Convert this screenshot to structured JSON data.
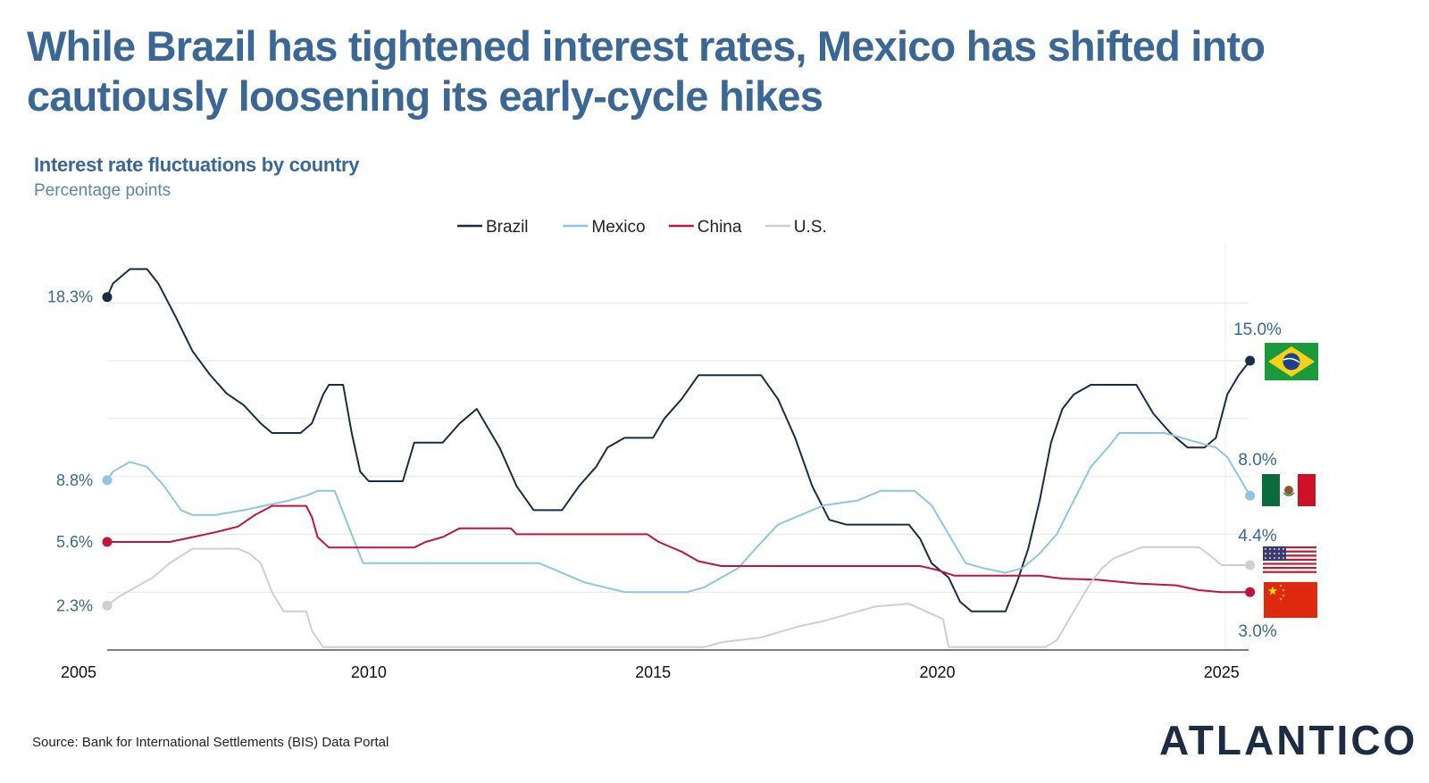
{
  "headline": "While Brazil has tightened interest rates, Mexico has shifted into cautiously loosening its early-cycle hikes",
  "source": "Source: Bank for International Settlements (BIS) Data Portal",
  "logo": "ATLANTICO",
  "colors": {
    "brazil": "#1b2c47",
    "mexico": "#8fc5df",
    "china": "#c0143c",
    "us": "#cfcfcf",
    "text_blue": "#3a6793"
  },
  "flags": [
    "brazil-flag",
    "mexico-flag",
    "us-flag",
    "china-flag"
  ],
  "chart_data": {
    "type": "line",
    "title": "Interest rate fluctuations by country",
    "ylabel": "Percentage points",
    "x_ticks": [
      2005,
      2010,
      2015,
      2020,
      2025
    ],
    "xlim": [
      2005.4,
      2025.6
    ],
    "ylim": [
      0,
      20
    ],
    "grid": true,
    "legend_position": "top-center",
    "start_labels": [
      {
        "series": "Brazil",
        "text": "18.3%",
        "value": 18.3
      },
      {
        "series": "Mexico",
        "text": "8.8%",
        "value": 8.8
      },
      {
        "series": "China",
        "text": "5.6%",
        "value": 5.6
      },
      {
        "series": "U.S.",
        "text": "2.3%",
        "value": 2.3
      }
    ],
    "end_labels": [
      {
        "series": "Brazil",
        "text": "15.0%",
        "value": 15.0
      },
      {
        "series": "Mexico",
        "text": "8.0%",
        "value": 8.0
      },
      {
        "series": "U.S.",
        "text": "4.4%",
        "value": 4.4
      },
      {
        "series": "China",
        "text": "3.0%",
        "value": 3.0
      }
    ],
    "series": [
      {
        "name": "Brazil",
        "color": "#1b2c47",
        "points": [
          [
            2005.4,
            18.3
          ],
          [
            2005.5,
            19.0
          ],
          [
            2005.8,
            19.75
          ],
          [
            2006.1,
            19.75
          ],
          [
            2006.3,
            19.0
          ],
          [
            2006.6,
            17.3
          ],
          [
            2006.9,
            15.5
          ],
          [
            2007.2,
            14.3
          ],
          [
            2007.5,
            13.3
          ],
          [
            2007.8,
            12.7
          ],
          [
            2008.1,
            11.75
          ],
          [
            2008.3,
            11.25
          ],
          [
            2008.5,
            11.25
          ],
          [
            2008.8,
            11.25
          ],
          [
            2009.0,
            11.75
          ],
          [
            2009.2,
            13.25
          ],
          [
            2009.3,
            13.75
          ],
          [
            2009.55,
            13.75
          ],
          [
            2009.7,
            11.25
          ],
          [
            2009.85,
            9.25
          ],
          [
            2010.0,
            8.75
          ],
          [
            2010.3,
            8.75
          ],
          [
            2010.6,
            8.75
          ],
          [
            2010.8,
            10.75
          ],
          [
            2011.0,
            10.75
          ],
          [
            2011.3,
            10.75
          ],
          [
            2011.6,
            11.75
          ],
          [
            2011.9,
            12.5
          ],
          [
            2012.1,
            11.5
          ],
          [
            2012.3,
            10.5
          ],
          [
            2012.6,
            8.5
          ],
          [
            2012.9,
            7.25
          ],
          [
            2013.1,
            7.25
          ],
          [
            2013.4,
            7.25
          ],
          [
            2013.7,
            8.5
          ],
          [
            2014.0,
            9.5
          ],
          [
            2014.2,
            10.5
          ],
          [
            2014.5,
            11.0
          ],
          [
            2014.8,
            11.0
          ],
          [
            2015.0,
            11.0
          ],
          [
            2015.2,
            12.0
          ],
          [
            2015.5,
            13.0
          ],
          [
            2015.8,
            14.25
          ],
          [
            2016.0,
            14.25
          ],
          [
            2016.5,
            14.25
          ],
          [
            2016.9,
            14.25
          ],
          [
            2017.2,
            13.0
          ],
          [
            2017.5,
            11.0
          ],
          [
            2017.8,
            8.5
          ],
          [
            2018.1,
            6.75
          ],
          [
            2018.4,
            6.5
          ],
          [
            2018.8,
            6.5
          ],
          [
            2019.2,
            6.5
          ],
          [
            2019.5,
            6.5
          ],
          [
            2019.7,
            5.75
          ],
          [
            2019.9,
            4.5
          ],
          [
            2020.2,
            3.75
          ],
          [
            2020.4,
            2.5
          ],
          [
            2020.6,
            2.0
          ],
          [
            2020.9,
            2.0
          ],
          [
            2021.2,
            2.0
          ],
          [
            2021.4,
            3.5
          ],
          [
            2021.6,
            5.25
          ],
          [
            2021.8,
            7.75
          ],
          [
            2022.0,
            10.75
          ],
          [
            2022.2,
            12.5
          ],
          [
            2022.4,
            13.25
          ],
          [
            2022.7,
            13.75
          ],
          [
            2023.1,
            13.75
          ],
          [
            2023.5,
            13.75
          ],
          [
            2023.8,
            12.25
          ],
          [
            2024.1,
            11.25
          ],
          [
            2024.4,
            10.5
          ],
          [
            2024.7,
            10.5
          ],
          [
            2024.9,
            11.0
          ],
          [
            2025.1,
            13.25
          ],
          [
            2025.3,
            14.25
          ],
          [
            2025.5,
            15.0
          ]
        ]
      },
      {
        "name": "Mexico",
        "color": "#8fc5df",
        "points": [
          [
            2005.4,
            8.8
          ],
          [
            2005.5,
            9.25
          ],
          [
            2005.8,
            9.75
          ],
          [
            2006.1,
            9.5
          ],
          [
            2006.4,
            8.5
          ],
          [
            2006.7,
            7.25
          ],
          [
            2006.9,
            7.0
          ],
          [
            2007.3,
            7.0
          ],
          [
            2007.8,
            7.25
          ],
          [
            2008.2,
            7.5
          ],
          [
            2008.6,
            7.75
          ],
          [
            2008.9,
            8.0
          ],
          [
            2009.1,
            8.25
          ],
          [
            2009.4,
            8.25
          ],
          [
            2009.6,
            6.75
          ],
          [
            2009.9,
            4.5
          ],
          [
            2010.0,
            4.5
          ],
          [
            2011.0,
            4.5
          ],
          [
            2012.0,
            4.5
          ],
          [
            2013.0,
            4.5
          ],
          [
            2013.4,
            4.0
          ],
          [
            2013.8,
            3.5
          ],
          [
            2014.5,
            3.0
          ],
          [
            2015.0,
            3.0
          ],
          [
            2015.6,
            3.0
          ],
          [
            2015.9,
            3.25
          ],
          [
            2016.2,
            3.75
          ],
          [
            2016.5,
            4.25
          ],
          [
            2016.8,
            5.25
          ],
          [
            2017.2,
            6.5
          ],
          [
            2017.6,
            7.0
          ],
          [
            2018.0,
            7.5
          ],
          [
            2018.6,
            7.75
          ],
          [
            2019.0,
            8.25
          ],
          [
            2019.6,
            8.25
          ],
          [
            2019.9,
            7.5
          ],
          [
            2020.2,
            6.0
          ],
          [
            2020.5,
            4.5
          ],
          [
            2020.8,
            4.25
          ],
          [
            2021.2,
            4.0
          ],
          [
            2021.5,
            4.25
          ],
          [
            2021.8,
            5.0
          ],
          [
            2022.1,
            6.0
          ],
          [
            2022.4,
            7.75
          ],
          [
            2022.7,
            9.5
          ],
          [
            2023.0,
            10.5
          ],
          [
            2023.2,
            11.25
          ],
          [
            2023.6,
            11.25
          ],
          [
            2024.0,
            11.25
          ],
          [
            2024.3,
            11.0
          ],
          [
            2024.6,
            10.75
          ],
          [
            2024.9,
            10.5
          ],
          [
            2025.1,
            10.0
          ],
          [
            2025.3,
            9.0
          ],
          [
            2025.5,
            8.0
          ]
        ]
      },
      {
        "name": "China",
        "color": "#c0143c",
        "points": [
          [
            2005.4,
            5.6
          ],
          [
            2006.0,
            5.6
          ],
          [
            2006.5,
            5.6
          ],
          [
            2006.9,
            5.85
          ],
          [
            2007.3,
            6.1
          ],
          [
            2007.7,
            6.4
          ],
          [
            2008.0,
            7.0
          ],
          [
            2008.3,
            7.47
          ],
          [
            2008.9,
            7.47
          ],
          [
            2009.0,
            6.9
          ],
          [
            2009.1,
            5.85
          ],
          [
            2009.3,
            5.31
          ],
          [
            2010.0,
            5.31
          ],
          [
            2010.8,
            5.31
          ],
          [
            2011.0,
            5.6
          ],
          [
            2011.3,
            5.85
          ],
          [
            2011.6,
            6.31
          ],
          [
            2012.2,
            6.31
          ],
          [
            2012.5,
            6.31
          ],
          [
            2012.6,
            6.0
          ],
          [
            2013.0,
            6.0
          ],
          [
            2014.0,
            6.0
          ],
          [
            2014.9,
            6.0
          ],
          [
            2015.1,
            5.6
          ],
          [
            2015.5,
            5.1
          ],
          [
            2015.8,
            4.6
          ],
          [
            2016.2,
            4.35
          ],
          [
            2017.0,
            4.35
          ],
          [
            2018.0,
            4.35
          ],
          [
            2019.0,
            4.35
          ],
          [
            2019.7,
            4.35
          ],
          [
            2020.0,
            4.15
          ],
          [
            2020.3,
            3.85
          ],
          [
            2021.0,
            3.85
          ],
          [
            2021.8,
            3.85
          ],
          [
            2022.2,
            3.7
          ],
          [
            2022.8,
            3.65
          ],
          [
            2023.5,
            3.45
          ],
          [
            2024.2,
            3.35
          ],
          [
            2024.6,
            3.1
          ],
          [
            2025.0,
            3.0
          ],
          [
            2025.5,
            3.0
          ]
        ]
      },
      {
        "name": "U.S.",
        "color": "#cfcfcf",
        "points": [
          [
            2005.4,
            2.3
          ],
          [
            2005.6,
            2.75
          ],
          [
            2005.9,
            3.25
          ],
          [
            2006.2,
            3.75
          ],
          [
            2006.5,
            4.5
          ],
          [
            2006.9,
            5.25
          ],
          [
            2007.3,
            5.25
          ],
          [
            2007.7,
            5.25
          ],
          [
            2007.9,
            5.0
          ],
          [
            2008.1,
            4.5
          ],
          [
            2008.3,
            3.0
          ],
          [
            2008.5,
            2.0
          ],
          [
            2008.9,
            2.0
          ],
          [
            2009.0,
            1.0
          ],
          [
            2009.2,
            0.15
          ],
          [
            2010.0,
            0.15
          ],
          [
            2012.0,
            0.15
          ],
          [
            2014.0,
            0.15
          ],
          [
            2015.9,
            0.15
          ],
          [
            2016.2,
            0.4
          ],
          [
            2016.9,
            0.65
          ],
          [
            2017.3,
            1.0
          ],
          [
            2017.6,
            1.25
          ],
          [
            2018.0,
            1.5
          ],
          [
            2018.3,
            1.75
          ],
          [
            2018.6,
            2.0
          ],
          [
            2018.9,
            2.25
          ],
          [
            2019.5,
            2.4
          ],
          [
            2019.8,
            2.0
          ],
          [
            2020.1,
            1.6
          ],
          [
            2020.2,
            0.15
          ],
          [
            2021.0,
            0.15
          ],
          [
            2021.9,
            0.15
          ],
          [
            2022.1,
            0.5
          ],
          [
            2022.3,
            1.5
          ],
          [
            2022.5,
            2.5
          ],
          [
            2022.7,
            3.5
          ],
          [
            2022.9,
            4.25
          ],
          [
            2023.1,
            4.75
          ],
          [
            2023.4,
            5.1
          ],
          [
            2023.6,
            5.33
          ],
          [
            2024.0,
            5.33
          ],
          [
            2024.6,
            5.33
          ],
          [
            2024.8,
            4.9
          ],
          [
            2025.0,
            4.4
          ],
          [
            2025.5,
            4.4
          ]
        ]
      }
    ]
  }
}
